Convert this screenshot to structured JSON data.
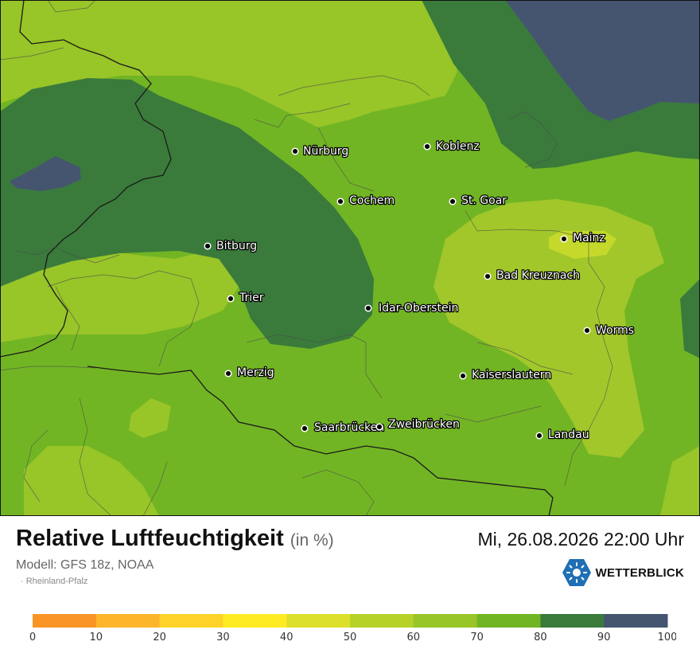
{
  "title": "Relative Luftfeuchtigkeit",
  "unit": "(in %)",
  "datetime": "Mi, 26.08.2026 22:00 Uhr",
  "model": "Modell: GFS 18z, NOAA",
  "region": "Rheinland-Pfalz",
  "brand": "WETTERBLICK",
  "logo_icon": "sun-icon",
  "colors": {
    "level_50_60": "#a2c72a",
    "level_60_70": "#98c528",
    "level_70_80": "#72b524",
    "level_80_90": "#3a7b3c",
    "level_90_100": "#455570",
    "logo_blue": "#1f6fb5"
  },
  "cities": [
    {
      "name": "Nürburg"
    },
    {
      "name": "Koblenz"
    },
    {
      "name": "Cochem"
    },
    {
      "name": "St. Goar"
    },
    {
      "name": "Mainz"
    },
    {
      "name": "Bitburg"
    },
    {
      "name": "Bad Kreuznach"
    },
    {
      "name": "Trier"
    },
    {
      "name": "Idar-Oberstein"
    },
    {
      "name": "Worms"
    },
    {
      "name": "Merzig"
    },
    {
      "name": "Kaiserslautern"
    },
    {
      "name": "Saarbrücken"
    },
    {
      "name": "Zweibrücken"
    },
    {
      "name": "Landau"
    }
  ],
  "legend": {
    "colors": [
      "#fa9427",
      "#fdb52c",
      "#ffd228",
      "#ffeb22",
      "#dde02a",
      "#b6d228",
      "#98c528",
      "#72b524",
      "#3a7b3c",
      "#455570"
    ],
    "ticks": [
      "0",
      "10",
      "20",
      "30",
      "40",
      "50",
      "60",
      "70",
      "80",
      "90",
      "100"
    ]
  }
}
